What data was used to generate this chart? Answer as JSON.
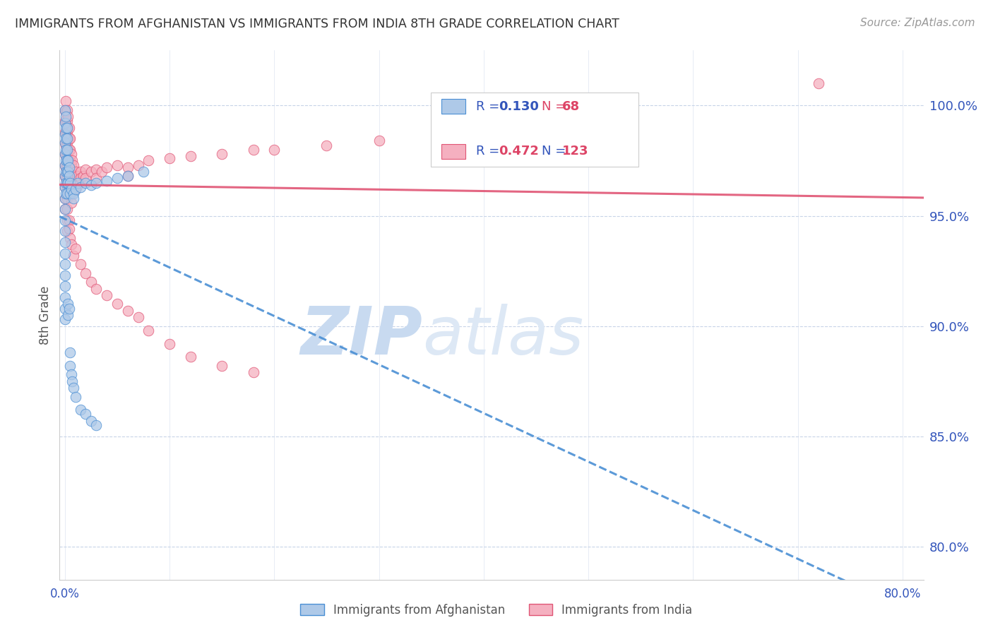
{
  "title": "IMMIGRANTS FROM AFGHANISTAN VS IMMIGRANTS FROM INDIA 8TH GRADE CORRELATION CHART",
  "source_text": "Source: ZipAtlas.com",
  "ylabel_left": "8th Grade",
  "y_ticks_right": [
    "100.0%",
    "95.0%",
    "90.0%",
    "85.0%",
    "80.0%"
  ],
  "y_tick_vals": [
    1.0,
    0.95,
    0.9,
    0.85,
    0.8
  ],
  "xlim": [
    -0.005,
    0.82
  ],
  "ylim": [
    0.785,
    1.025
  ],
  "afghanistan_R": 0.13,
  "afghanistan_N": 68,
  "india_R": 0.472,
  "india_N": 123,
  "afghanistan_color": "#aec9e8",
  "india_color": "#f5b0c0",
  "afghanistan_line_color": "#4a8fd4",
  "india_line_color": "#e05575",
  "watermark_zip": "ZIP",
  "watermark_atlas": "atlas",
  "watermark_color": "#ddeeff",
  "bg_color": "#ffffff",
  "grid_color": "#c8d4e8",
  "axis_color": "#cccccc",
  "tick_label_color": "#3355bb",
  "title_color": "#333333",
  "ylabel_color": "#555555",
  "source_color": "#999999",
  "legend_R_afg_color": "#3355bb",
  "legend_N_afg_color": "#dd4466",
  "legend_R_india_color": "#3355bb",
  "legend_N_india_color": "#dd4466"
}
